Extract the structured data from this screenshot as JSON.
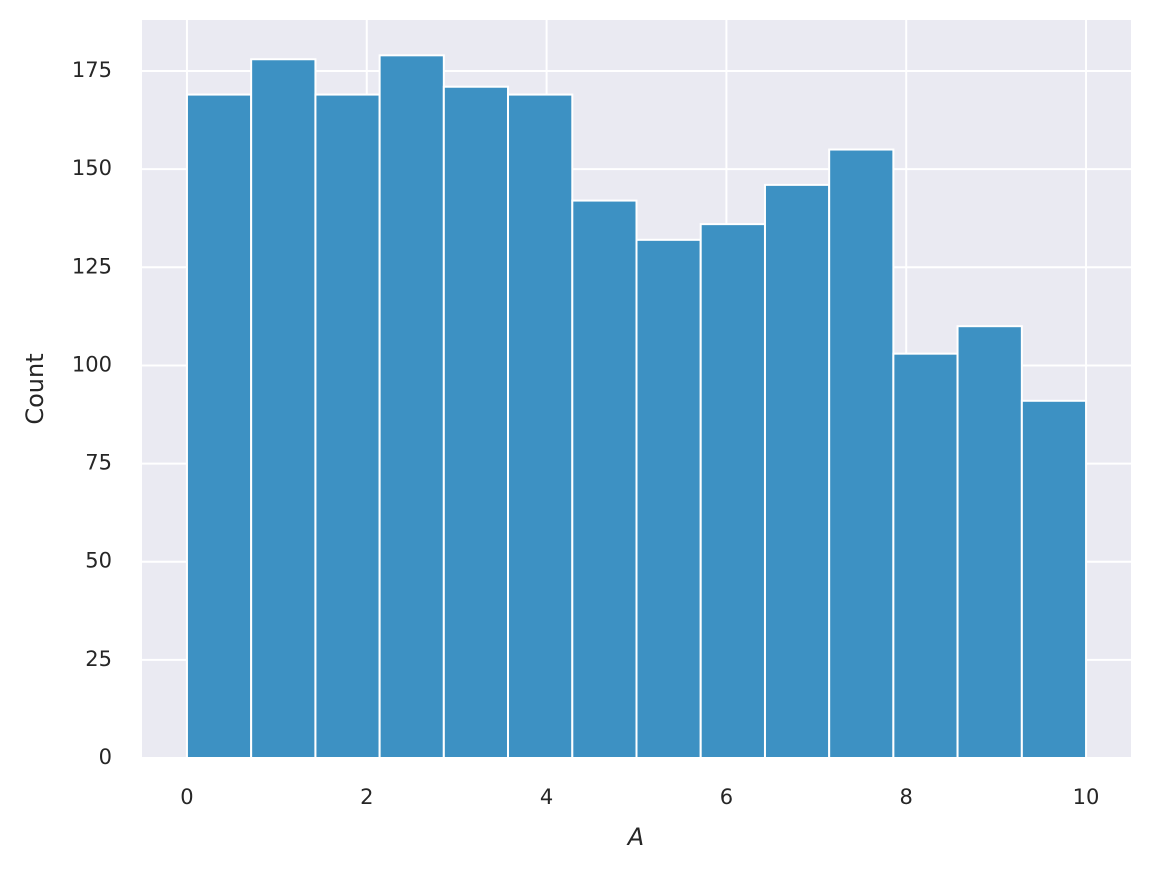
{
  "chart_data": {
    "type": "histogram",
    "bins": [
      0,
      0.714,
      1.429,
      2.143,
      2.857,
      3.571,
      4.286,
      5,
      5.714,
      6.429,
      7.143,
      7.857,
      8.571,
      9.286,
      10
    ],
    "values": [
      169,
      178,
      169,
      179,
      171,
      169,
      142,
      132,
      136,
      146,
      155,
      103,
      110,
      91
    ],
    "color": "#3d91c3",
    "x_label": "A",
    "y_label": "Count",
    "xlim": [
      -0.5,
      10.5
    ],
    "xticks": [
      0,
      2,
      4,
      6,
      8,
      10
    ],
    "ylim": [
      0,
      188
    ],
    "yticks": [
      0,
      25,
      50,
      75,
      100,
      125,
      150,
      175
    ],
    "grid": true
  }
}
